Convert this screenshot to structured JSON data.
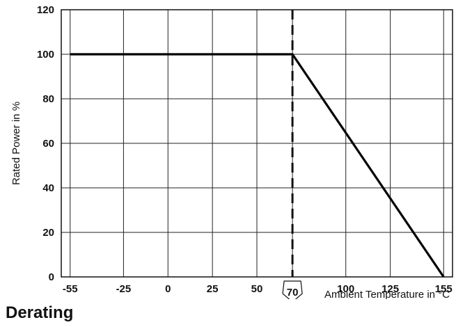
{
  "page_title": "Derating",
  "chart_data": {
    "type": "line",
    "title": "",
    "xlabel": "Ambient Temperature in °C",
    "ylabel": "Rated Power in %",
    "xlim": [
      -60,
      160
    ],
    "ylim": [
      0,
      120
    ],
    "x_ticks": [
      -55,
      -25,
      0,
      25,
      50,
      100,
      125,
      155
    ],
    "y_ticks": [
      0,
      20,
      40,
      60,
      80,
      100,
      120
    ],
    "grid": true,
    "series": [
      {
        "points": [
          [
            -55,
            100
          ],
          [
            70,
            100
          ],
          [
            155,
            0
          ]
        ]
      }
    ],
    "annotations": [
      {
        "type": "vertical-dashed-line",
        "x": 70,
        "label": "70"
      }
    ]
  }
}
